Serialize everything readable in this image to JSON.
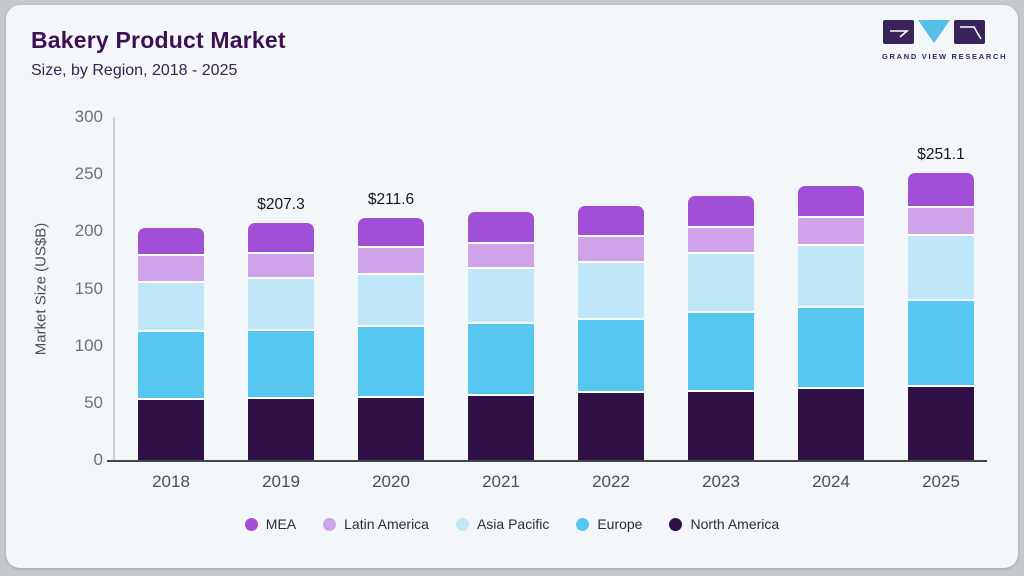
{
  "header": {
    "title": "Bakery Product Market",
    "subtitle": "Size, by Region, 2018 - 2025"
  },
  "logo": {
    "caption": "GRAND VIEW RESEARCH",
    "square_color": "#38235a",
    "triangle_color": "#55bfe5"
  },
  "chart_data": {
    "type": "bar",
    "stacked": true,
    "title": "Bakery Product Market Size, by Region, 2018 - 2025",
    "ylabel": "Market Size (US$B)",
    "categories": [
      "2018",
      "2019",
      "2020",
      "2021",
      "2022",
      "2023",
      "2024",
      "2025"
    ],
    "ylim": [
      0,
      300
    ],
    "yticks": [
      0,
      50,
      100,
      150,
      200,
      250,
      300
    ],
    "grid": false,
    "legend_position": "bottom",
    "series": [
      {
        "name": "North America",
        "color": "#2f1147",
        "values": [
          54,
          55,
          56,
          58,
          60,
          61,
          64,
          66
        ]
      },
      {
        "name": "Europe",
        "color": "#56c7f0",
        "values": [
          60,
          60,
          62,
          63,
          64,
          69,
          71,
          75
        ]
      },
      {
        "name": "Asia Pacific",
        "color": "#c0e7f8",
        "values": [
          43,
          45,
          46,
          48,
          50,
          52,
          54,
          57
        ]
      },
      {
        "name": "Latin America",
        "color": "#cfa3ea",
        "values": [
          23,
          22,
          23,
          22,
          23,
          23,
          24,
          24
        ]
      },
      {
        "name": "MEA",
        "color": "#a14fd6",
        "values": [
          23,
          25.3,
          24.6,
          26,
          25,
          26,
          27,
          29.1
        ]
      }
    ],
    "totals": [
      203,
      207.3,
      211.6,
      217,
      222,
      231,
      240,
      251.1
    ],
    "value_labels": [
      "",
      "$207.3",
      "$211.6",
      "",
      "",
      "",
      "",
      "$251.1"
    ],
    "legend_order": [
      "MEA",
      "Latin America",
      "Asia Pacific",
      "Europe",
      "North America"
    ]
  },
  "colors": {
    "card_bg": "#f4f7fa",
    "frame_bg": "#c5c8cd",
    "title_text": "#3c1053",
    "axis_text": "#6d7278",
    "baseline": "#43474c"
  }
}
